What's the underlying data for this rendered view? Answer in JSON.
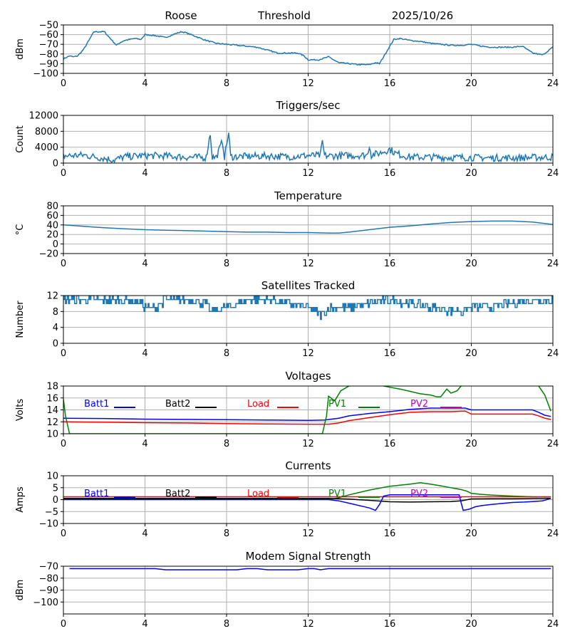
{
  "header": {
    "station": "Roose",
    "mode": "Threshold",
    "date": "2025/10/26"
  },
  "colors": {
    "series": "#1f77b4",
    "grid": "#b0b0b0",
    "batt1": "#0000ff",
    "batt2": "#000000",
    "load": "#ff0000",
    "pv1": "#008000",
    "pv2": "#bf00bf"
  },
  "chart_data": [
    {
      "id": "threshold",
      "type": "line",
      "title": "",
      "ylabel": "dBm",
      "xlim": [
        0,
        24
      ],
      "xticks": [
        0,
        4,
        8,
        12,
        16,
        20,
        24
      ],
      "ylim": [
        -100,
        -50
      ],
      "yticks": [
        -100,
        -90,
        -80,
        -70,
        -60,
        -50
      ],
      "grid": true,
      "series": [
        {
          "name": "Threshold",
          "color": "#1f77b4",
          "noise": 0.6,
          "x": [
            0,
            0.3,
            0.5,
            0.7,
            1.0,
            1.5,
            2.0,
            2.3,
            2.6,
            2.8,
            3.0,
            3.5,
            3.8,
            4.0,
            4.5,
            5.0,
            5.5,
            5.8,
            6.0,
            6.5,
            7.0,
            7.5,
            8.0,
            8.5,
            9.0,
            9.5,
            10.0,
            10.5,
            11.0,
            11.5,
            11.8,
            12.0,
            12.5,
            13.0,
            13.5,
            14.0,
            14.5,
            15.0,
            15.3,
            15.5,
            16.0,
            16.2,
            16.5,
            17.0,
            17.5,
            18.0,
            18.5,
            19.0,
            19.5,
            20.0,
            20.5,
            21.0,
            21.5,
            22.0,
            22.5,
            23.0,
            23.5,
            24.0
          ],
          "y": [
            -85,
            -82,
            -83,
            -82,
            -75,
            -57,
            -57,
            -64,
            -71,
            -68,
            -66,
            -64,
            -65,
            -60,
            -61,
            -63,
            -59,
            -57,
            -58,
            -62,
            -66,
            -69,
            -70,
            -71,
            -72,
            -73,
            -76,
            -79,
            -79,
            -79,
            -82,
            -86,
            -86,
            -83,
            -89,
            -90,
            -91,
            -91,
            -89,
            -90,
            -72,
            -65,
            -64,
            -66,
            -67,
            -69,
            -70,
            -71,
            -71,
            -70,
            -72,
            -73,
            -73,
            -73,
            -72,
            -79,
            -81,
            -73
          ]
        }
      ]
    },
    {
      "id": "triggers",
      "type": "line",
      "title": "Triggers/sec",
      "ylabel": "Count",
      "xlim": [
        0,
        24
      ],
      "xticks": [
        0,
        4,
        8,
        12,
        16,
        20,
        24
      ],
      "ylim": [
        0,
        12000
      ],
      "yticks": [
        0,
        4000,
        8000,
        12000
      ],
      "grid": true,
      "series": [
        {
          "name": "Triggers",
          "color": "#1f77b4",
          "noise": 900,
          "x": [
            0,
            1,
            2,
            2.5,
            3,
            4,
            5,
            6,
            7,
            7.2,
            7.3,
            7.5,
            7.8,
            7.9,
            8.1,
            8.2,
            9,
            10,
            11,
            12,
            12.6,
            12.7,
            12.8,
            13,
            14,
            14.9,
            15,
            15.1,
            15.5,
            16,
            16.3,
            17,
            18,
            19,
            20,
            21,
            22,
            23,
            24
          ],
          "y": [
            1800,
            2000,
            1200,
            800,
            1600,
            1900,
            1800,
            1500,
            1400,
            7500,
            1500,
            1500,
            5500,
            1600,
            7600,
            1600,
            1700,
            1800,
            1600,
            1900,
            1900,
            5400,
            1900,
            1800,
            1900,
            2000,
            4500,
            2000,
            2500,
            3500,
            2400,
            1500,
            1500,
            1400,
            1400,
            1300,
            1300,
            1400,
            1500
          ]
        }
      ]
    },
    {
      "id": "temperature",
      "type": "line",
      "title": "Temperature",
      "ylabel": "°C",
      "xlim": [
        0,
        24
      ],
      "xticks": [
        0,
        4,
        8,
        12,
        16,
        20,
        24
      ],
      "ylim": [
        -20,
        80
      ],
      "yticks": [
        -20,
        0,
        20,
        40,
        60,
        80
      ],
      "grid": true,
      "series": [
        {
          "name": "Temperature",
          "color": "#1f77b4",
          "noise": 0,
          "x": [
            0,
            1,
            2,
            3,
            4,
            5,
            6,
            7,
            8,
            9,
            10,
            11,
            12,
            13,
            13.5,
            14,
            15,
            16,
            17,
            18,
            19,
            20,
            21,
            22,
            23,
            24
          ],
          "y": [
            40,
            37,
            34,
            32,
            30,
            29,
            28,
            27,
            26,
            25,
            25,
            24,
            24,
            23,
            23,
            25,
            30,
            35,
            38,
            42,
            45,
            47,
            48,
            48,
            46,
            41
          ]
        }
      ]
    },
    {
      "id": "satellites",
      "type": "line",
      "title": "Satellites Tracked",
      "ylabel": "Number",
      "xlim": [
        0,
        24
      ],
      "xticks": [
        0,
        4,
        8,
        12,
        16,
        20,
        24
      ],
      "ylim": [
        0,
        12
      ],
      "yticks": [
        0,
        4,
        8,
        12
      ],
      "grid": true,
      "step": true,
      "series": [
        {
          "name": "Satellites",
          "color": "#1f77b4",
          "noise": 1,
          "x": [
            0,
            1,
            2,
            3,
            3.8,
            4,
            4.5,
            5,
            6,
            7,
            7.2,
            8,
            9,
            10,
            11,
            12,
            12.7,
            13,
            14,
            15,
            16,
            17,
            18,
            19.4,
            19.5,
            20,
            21,
            22,
            23,
            24
          ],
          "y": [
            11,
            11,
            11,
            11,
            10,
            9,
            9,
            11,
            11,
            10,
            8,
            9,
            11,
            11,
            10,
            9,
            7,
            9,
            9,
            10,
            11,
            10,
            9,
            8,
            8,
            9,
            9,
            10,
            11,
            11
          ]
        }
      ]
    },
    {
      "id": "voltages",
      "type": "line",
      "title": "Voltages",
      "ylabel": "Volts",
      "xlim": [
        0,
        24
      ],
      "xticks": [
        0,
        4,
        8,
        12,
        16,
        20,
        24
      ],
      "ylim": [
        10,
        18
      ],
      "yticks": [
        10,
        12,
        14,
        16,
        18
      ],
      "grid": true,
      "legend": [
        "Batt1",
        "Batt2",
        "Load",
        "PV1",
        "PV2"
      ],
      "series": [
        {
          "name": "Batt1",
          "color": "#0000ff",
          "noise": 0,
          "x": [
            0,
            2,
            4,
            6,
            8,
            10,
            12,
            12.8,
            13.5,
            14,
            15,
            16,
            17,
            18,
            19,
            19.7,
            20,
            21,
            22,
            23,
            23.3,
            23.6,
            23.9
          ],
          "y": [
            12.6,
            12.55,
            12.45,
            12.4,
            12.35,
            12.3,
            12.25,
            12.3,
            12.6,
            13.0,
            13.4,
            13.7,
            14.1,
            14.3,
            14.3,
            14.3,
            14.0,
            14.0,
            14.0,
            14.0,
            13.6,
            13.1,
            12.9
          ]
        },
        {
          "name": "Load",
          "color": "#ff0000",
          "noise": 0,
          "x": [
            0,
            2,
            4,
            6,
            8,
            10,
            12,
            13,
            13.5,
            14,
            15,
            16,
            17,
            18,
            19,
            19.7,
            20,
            21,
            22,
            23,
            23.3,
            23.6,
            23.9
          ],
          "y": [
            12.0,
            11.95,
            11.85,
            11.8,
            11.7,
            11.65,
            11.6,
            11.6,
            11.8,
            12.2,
            12.7,
            13.2,
            13.6,
            13.7,
            13.7,
            13.8,
            13.3,
            13.3,
            13.3,
            13.3,
            13.0,
            12.6,
            12.4
          ]
        },
        {
          "name": "PV1",
          "color": "#008000",
          "noise": 0,
          "x": [
            0,
            0.1,
            0.3,
            12.7,
            12.9,
            13.0,
            13.3,
            13.6,
            14.0,
            15.0,
            16.0,
            16.5,
            17.0,
            17.5,
            18.0,
            18.3,
            18.5,
            18.8,
            19.0,
            19.3,
            19.5,
            19.7,
            23.0,
            23.3,
            23.6,
            23.9
          ],
          "y": [
            15.8,
            13,
            10,
            10,
            13,
            16.3,
            15.5,
            17.2,
            18,
            18.5,
            17.8,
            17.5,
            17.1,
            16.7,
            16.5,
            16.2,
            16.2,
            17.5,
            16.8,
            17.2,
            18,
            18.5,
            18.5,
            18,
            16.5,
            13.8
          ]
        }
      ]
    },
    {
      "id": "currents",
      "type": "line",
      "title": "Currents",
      "ylabel": "Amps",
      "xlim": [
        0,
        24
      ],
      "xticks": [
        0,
        4,
        8,
        12,
        16,
        20,
        24
      ],
      "ylim": [
        -10,
        10
      ],
      "yticks": [
        -10,
        -5,
        0,
        5,
        10
      ],
      "grid": true,
      "legend": [
        "Batt1",
        "Batt2",
        "Load",
        "PV1",
        "PV2"
      ],
      "series": [
        {
          "name": "PV1",
          "color": "#008000",
          "noise": 0,
          "x": [
            0,
            13.2,
            13.5,
            14,
            15,
            16,
            17,
            17.5,
            18,
            18.5,
            19,
            19.5,
            19.8,
            20,
            20.5,
            21,
            22,
            23,
            23.9
          ],
          "y": [
            0.2,
            0.3,
            0.8,
            2.0,
            4.0,
            5.6,
            6.5,
            7.1,
            6.5,
            5.8,
            5.0,
            4.2,
            3.5,
            2.6,
            2.2,
            1.9,
            1.5,
            1.2,
            1.1
          ]
        },
        {
          "name": "Batt2",
          "color": "#000000",
          "noise": 0,
          "x": [
            0,
            13,
            14,
            15,
            15.5,
            16,
            17,
            18,
            19,
            19.5,
            20,
            21,
            22,
            23,
            23.9
          ],
          "y": [
            0.5,
            0.5,
            0.2,
            -0.3,
            -0.6,
            -0.9,
            -1.0,
            -0.9,
            -0.8,
            -0.5,
            0.3,
            0.4,
            0.4,
            0.5,
            0.5
          ]
        },
        {
          "name": "Load",
          "color": "#ff0000",
          "noise": 0,
          "x": [
            0,
            23.9
          ],
          "y": [
            1.2,
            1.2
          ]
        },
        {
          "name": "Batt1",
          "color": "#0000ff",
          "noise": 0,
          "x": [
            0,
            13,
            13.5,
            14,
            15,
            15.3,
            15.5,
            15.7,
            16,
            17,
            18,
            19,
            19.4,
            19.6,
            19.9,
            20.2,
            20.5,
            21,
            22,
            22.6,
            23,
            23.5,
            23.9
          ],
          "y": [
            0,
            0,
            -0.5,
            -1.5,
            -3.5,
            -4.5,
            -2,
            1.5,
            2.0,
            2.0,
            2.0,
            2.0,
            2.0,
            -4.5,
            -4.0,
            -3.0,
            -2.5,
            -2.0,
            -1.2,
            -1.0,
            -0.8,
            -0.5,
            0.5
          ]
        }
      ]
    },
    {
      "id": "modem",
      "type": "line",
      "title": "Modem Signal Strength",
      "ylabel": "dBm",
      "xlim": [
        0,
        24
      ],
      "xticks": [
        0,
        4,
        8,
        12,
        16,
        20,
        24
      ],
      "ylim": [
        -110,
        -70
      ],
      "yticks": [
        -100,
        -90,
        -80,
        -70
      ],
      "grid": true,
      "series": [
        {
          "name": "Modem",
          "color": "#0000ff",
          "noise": 0,
          "x": [
            0.3,
            1,
            2,
            3,
            4,
            4.5,
            5,
            6,
            7,
            8,
            8.5,
            9,
            9.5,
            10,
            11,
            11.5,
            12,
            12.3,
            12.6,
            13,
            13.5,
            14,
            15,
            16,
            17,
            18,
            19,
            20,
            21,
            22,
            23,
            23.9
          ],
          "y": [
            -72,
            -72,
            -72,
            -72,
            -72,
            -72,
            -73,
            -73,
            -73,
            -73,
            -73,
            -72,
            -72,
            -73,
            -73,
            -73,
            -72,
            -72,
            -73,
            -72,
            -72,
            -72,
            -72,
            -72,
            -72,
            -72,
            -72,
            -72,
            -72,
            -72,
            -72,
            -72
          ]
        }
      ]
    }
  ]
}
